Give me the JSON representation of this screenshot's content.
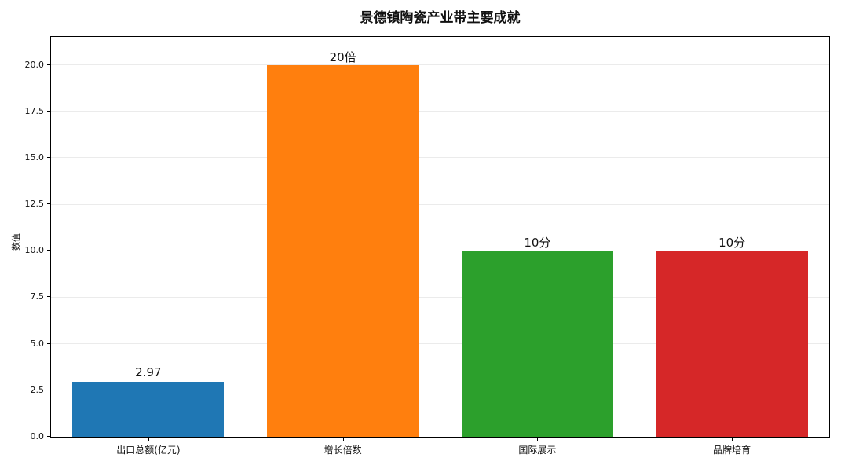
{
  "chart_data": {
    "type": "bar",
    "title": "景德镇陶瓷产业带主要成就",
    "ylabel": "数值",
    "xlabel": "",
    "categories": [
      "出口总额(亿元)",
      "增长倍数",
      "国际展示",
      "品牌培育"
    ],
    "values": [
      2.97,
      20,
      10,
      10
    ],
    "bar_labels": [
      "2.97",
      "20倍",
      "10分",
      "10分"
    ],
    "colors": [
      "#1f77b4",
      "#ff7f0e",
      "#2ca02c",
      "#d62728"
    ],
    "ylim": [
      0,
      21.5
    ],
    "yticks": [
      "0.0",
      "2.5",
      "5.0",
      "7.5",
      "10.0",
      "12.5",
      "15.0",
      "17.5",
      "20.0"
    ],
    "grid": "horizontal-faint",
    "legend": "none"
  }
}
